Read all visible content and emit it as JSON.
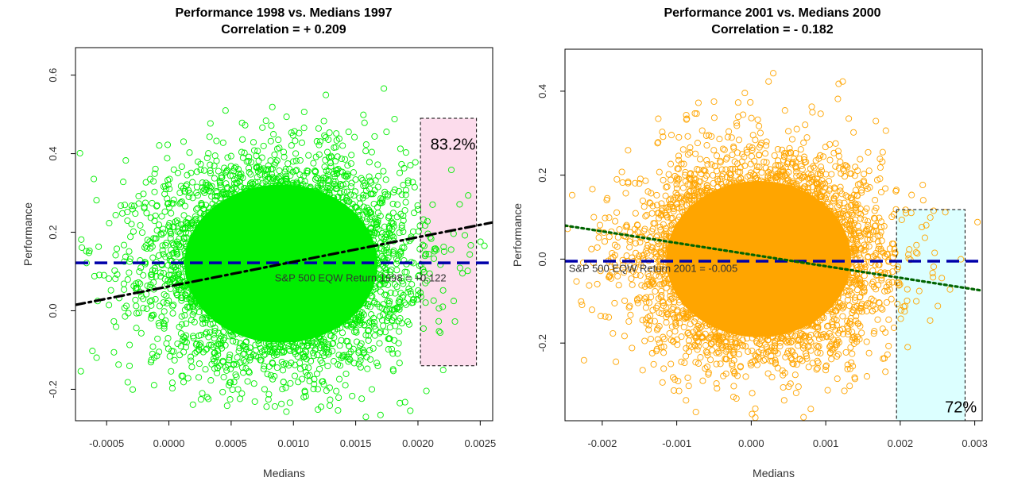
{
  "chart_data": [
    {
      "type": "scatter",
      "title": "Performance 1998 vs. Medians 1997",
      "subtitle": "Correlation = + 0.209",
      "xlabel": "Medians",
      "ylabel": "Performance",
      "xlim": [
        -0.00075,
        0.0026
      ],
      "ylim": [
        -0.28,
        0.67
      ],
      "xticks": [
        -0.0005,
        0.0,
        0.0005,
        0.001,
        0.0015,
        0.002,
        0.0025
      ],
      "xtick_labels": [
        "-0.0005",
        "0.0000",
        "0.0005",
        "0.0010",
        "0.0015",
        "0.0020",
        "0.0025"
      ],
      "yticks": [
        -0.2,
        0.0,
        0.2,
        0.4,
        0.6
      ],
      "ytick_labels": [
        "-0.2",
        "0.0",
        "0.2",
        "0.4",
        "0.6"
      ],
      "point_color": "#00ee00",
      "cloud": {
        "center_x": 0.0009,
        "center_y": 0.12,
        "spread_x": 0.0005,
        "spread_y": 0.13
      },
      "benchmark": {
        "y": 0.122,
        "color": "#0000aa",
        "label": "S&P 500 EQW Return 1998 = +0.122",
        "label_x": 0.00085,
        "label_y": 0.075
      },
      "trend_line": {
        "x": [
          -0.00075,
          0.0026
        ],
        "y": [
          0.015,
          0.225
        ],
        "color": "#000000",
        "style": "dot-dash"
      },
      "highlight": {
        "x": [
          0.00202,
          0.00247
        ],
        "y": [
          -0.14,
          0.49
        ],
        "fill": "#fcdcec",
        "label": "83.2%",
        "label_x": 0.0021,
        "label_y": 0.41
      },
      "grid": false,
      "legend": "none"
    },
    {
      "type": "scatter",
      "title": "Performance 2001 vs. Medians 2000",
      "subtitle": "Correlation = - 0.182",
      "xlabel": "Medians",
      "ylabel": "Performance",
      "xlim": [
        -0.0025,
        0.0031
      ],
      "ylim": [
        -0.385,
        0.5
      ],
      "xticks": [
        -0.002,
        -0.001,
        0.0,
        0.001,
        0.002,
        0.003
      ],
      "xtick_labels": [
        "-0.002",
        "-0.001",
        "0.000",
        "0.001",
        "0.002",
        "0.003"
      ],
      "yticks": [
        -0.2,
        0.0,
        0.2,
        0.4
      ],
      "ytick_labels": [
        "-0.2",
        "0.0",
        "0.2",
        "0.4"
      ],
      "point_color": "#ffa500",
      "cloud": {
        "center_x": 0.0001,
        "center_y": 0.0,
        "spread_x": 0.0008,
        "spread_y": 0.12
      },
      "benchmark": {
        "y": -0.005,
        "color": "#0000aa",
        "label": "S&P 500 EQW Return 2001 = -0.005",
        "label_x": -0.00245,
        "label_y": -0.03
      },
      "trend_line": {
        "x": [
          -0.0025,
          0.0031
        ],
        "y": [
          0.08,
          -0.075
        ],
        "color": "#006400",
        "style": "dotted"
      },
      "highlight": {
        "x": [
          0.00195,
          0.00287
        ],
        "y": [
          -0.385,
          0.118
        ],
        "fill": "#dcffff",
        "label": "72%",
        "label_x": 0.0026,
        "label_y": -0.365
      },
      "grid": false,
      "legend": "none"
    }
  ]
}
